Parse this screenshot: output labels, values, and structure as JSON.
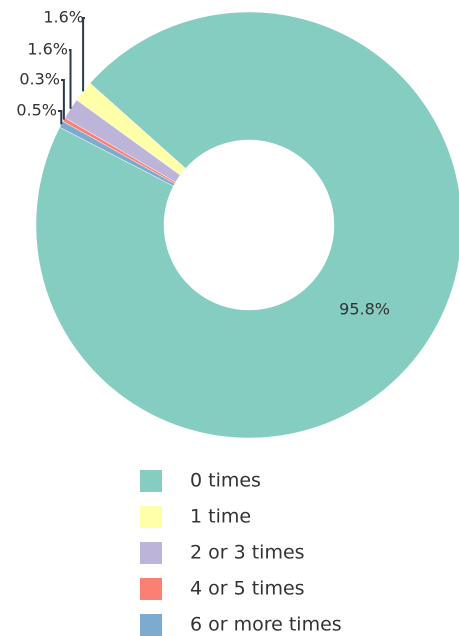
{
  "chart_data": {
    "type": "donut",
    "categories": [
      "0 times",
      "1 time",
      "2 or 3 times",
      "4 or 5 times",
      "6 or more times"
    ],
    "values": [
      95.8,
      1.6,
      1.6,
      0.3,
      0.5
    ],
    "value_labels": [
      "95.8%",
      "1.6%",
      "1.6%",
      "0.3%",
      "0.5%"
    ],
    "colors": [
      "#84cdc0",
      "#ffffaa",
      "#bcb5d9",
      "#fb8072",
      "#7cabcf"
    ],
    "legend": "bottom"
  }
}
